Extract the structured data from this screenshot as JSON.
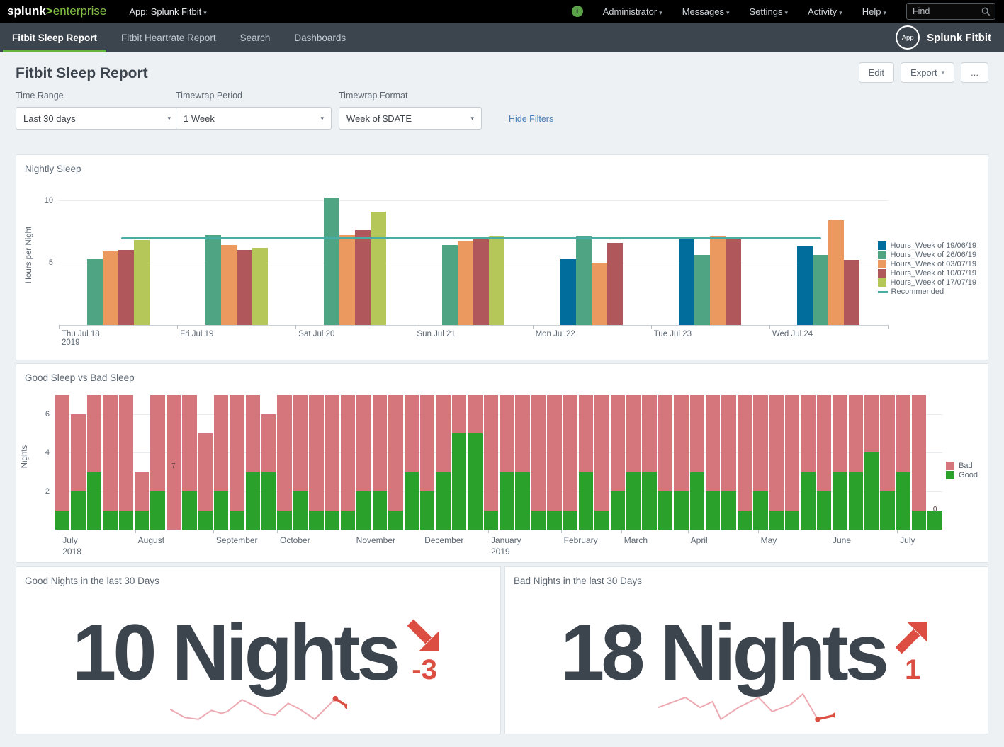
{
  "topbar": {
    "logo": {
      "splunk": "splunk",
      "gt": ">",
      "enterprise": "enterprise"
    },
    "app_menu": "App: Splunk Fitbit",
    "menus": [
      "Administrator",
      "Messages",
      "Settings",
      "Activity",
      "Help"
    ],
    "find_placeholder": "Find"
  },
  "navbar": {
    "tabs": [
      "Fitbit Sleep Report",
      "Fitbit Heartrate Report",
      "Search",
      "Dashboards"
    ],
    "active_tab": "Fitbit Sleep Report",
    "app_badge": "App",
    "app_name": "Splunk Fitbit"
  },
  "header": {
    "title": "Fitbit Sleep Report",
    "edit_label": "Edit",
    "export_label": "Export",
    "more_label": "..."
  },
  "filters": {
    "hide_label": "Hide Filters",
    "items": [
      {
        "label": "Time Range",
        "value": "Last 30 days"
      },
      {
        "label": "Timewrap Period",
        "value": "1 Week"
      },
      {
        "label": "Timewrap Format",
        "value": "Week of $DATE"
      }
    ]
  },
  "colors": {
    "accent_green": "#65b53f",
    "trend_red": "#dc4e41",
    "spark_pink": "#edaab2",
    "bad_pink": "#d4767c",
    "good_green": "#2aa12b"
  },
  "chart_data": [
    {
      "type": "bar",
      "title": "Nightly Sleep",
      "ylabel": "Hours per Night",
      "yticks": [
        5,
        10
      ],
      "ylim": [
        0,
        11
      ],
      "categories": [
        "Thu Jul 18",
        "Fri Jul 19",
        "Sat Jul 20",
        "Sun Jul 21",
        "Mon Jul 22",
        "Tue Jul 23",
        "Wed Jul 24"
      ],
      "first_category_sub": "2019",
      "series": [
        {
          "name": "Hours_Week of 19/06/19",
          "color": "#006d9c",
          "values": [
            null,
            null,
            null,
            null,
            5.3,
            6.9,
            6.3
          ]
        },
        {
          "name": "Hours_Week of 26/06/19",
          "color": "#4fa484",
          "values": [
            5.3,
            7.2,
            10.2,
            6.4,
            7.1,
            5.6,
            5.6
          ]
        },
        {
          "name": "Hours_Week of 03/07/19",
          "color": "#ec9960",
          "values": [
            5.9,
            6.4,
            7.2,
            6.7,
            5.0,
            7.1,
            8.4
          ]
        },
        {
          "name": "Hours_Week of 10/07/19",
          "color": "#af575a",
          "values": [
            6.0,
            6.0,
            7.6,
            6.9,
            6.6,
            6.9,
            5.2
          ]
        },
        {
          "name": "Hours_Week of 17/07/19",
          "color": "#b6c75a",
          "values": [
            6.8,
            6.2,
            9.1,
            7.1,
            null,
            null,
            null
          ]
        }
      ],
      "reference_line": {
        "label": "Recommended",
        "value": 7,
        "color": "#4aada3",
        "start_pct": 7.5,
        "end_pct": 92
      }
    },
    {
      "type": "stacked-bar",
      "title": "Good Sleep vs Bad Sleep",
      "ylabel": "Nights",
      "yticks": [
        2,
        4,
        6
      ],
      "ylim": [
        0,
        7
      ],
      "legend": [
        {
          "name": "Bad",
          "color": "#d4767c"
        },
        {
          "name": "Good",
          "color": "#2aa12b"
        }
      ],
      "months": [
        {
          "label": "July",
          "sub": "2018",
          "pct": 0.5
        },
        {
          "label": "August",
          "pct": 9.0
        },
        {
          "label": "September",
          "pct": 17.8
        },
        {
          "label": "October",
          "pct": 25.0
        },
        {
          "label": "November",
          "pct": 33.6
        },
        {
          "label": "December",
          "pct": 41.3
        },
        {
          "label": "January",
          "sub": "2019",
          "pct": 48.8
        },
        {
          "label": "February",
          "pct": 57.0
        },
        {
          "label": "March",
          "pct": 63.8
        },
        {
          "label": "April",
          "pct": 71.3
        },
        {
          "label": "May",
          "pct": 79.2
        },
        {
          "label": "June",
          "pct": 87.3
        },
        {
          "label": "July",
          "pct": 94.9
        }
      ],
      "bars": [
        [
          1,
          6
        ],
        [
          2,
          4
        ],
        [
          3,
          4
        ],
        [
          1,
          6
        ],
        [
          1,
          6
        ],
        [
          1,
          2
        ],
        [
          2,
          5
        ],
        [
          0,
          7
        ],
        [
          2,
          5
        ],
        [
          1,
          4
        ],
        [
          2,
          5
        ],
        [
          1,
          6
        ],
        [
          3,
          4
        ],
        [
          3,
          3
        ],
        [
          1,
          6
        ],
        [
          2,
          5
        ],
        [
          1,
          6
        ],
        [
          1,
          6
        ],
        [
          1,
          6
        ],
        [
          2,
          5
        ],
        [
          2,
          5
        ],
        [
          1,
          6
        ],
        [
          3,
          4
        ],
        [
          2,
          5
        ],
        [
          3,
          4
        ],
        [
          5,
          2
        ],
        [
          5,
          2
        ],
        [
          1,
          6
        ],
        [
          3,
          4
        ],
        [
          3,
          4
        ],
        [
          1,
          6
        ],
        [
          1,
          6
        ],
        [
          1,
          6
        ],
        [
          3,
          4
        ],
        [
          1,
          6
        ],
        [
          2,
          5
        ],
        [
          3,
          4
        ],
        [
          3,
          4
        ],
        [
          2,
          5
        ],
        [
          2,
          5
        ],
        [
          3,
          4
        ],
        [
          2,
          5
        ],
        [
          2,
          5
        ],
        [
          1,
          6
        ],
        [
          2,
          5
        ],
        [
          1,
          6
        ],
        [
          1,
          6
        ],
        [
          3,
          4
        ],
        [
          2,
          5
        ],
        [
          3,
          4
        ],
        [
          3,
          4
        ],
        [
          4,
          3
        ],
        [
          2,
          5
        ],
        [
          3,
          4
        ],
        [
          1,
          6
        ],
        [
          1,
          0
        ]
      ],
      "annotations": [
        {
          "index": 7,
          "text": "7",
          "bottom_pct": 44
        },
        {
          "index": 55,
          "text": "0",
          "bottom_pct": 12
        }
      ]
    },
    {
      "type": "single-value",
      "title": "Good Nights in the last 30 Days",
      "value": "10",
      "unit": "Nights",
      "delta": "-3",
      "trend": "down",
      "sparkline": [
        [
          0,
          38
        ],
        [
          25,
          52
        ],
        [
          48,
          55
        ],
        [
          70,
          40
        ],
        [
          87,
          45
        ],
        [
          97,
          42
        ],
        [
          122,
          22
        ],
        [
          145,
          33
        ],
        [
          160,
          45
        ],
        [
          178,
          48
        ],
        [
          200,
          28
        ],
        [
          220,
          38
        ],
        [
          245,
          55
        ],
        [
          268,
          32
        ],
        [
          280,
          20
        ],
        [
          300,
          33
        ]
      ],
      "red_from": 14
    },
    {
      "type": "single-value",
      "title": "Bad Nights in the last 30 Days",
      "value": "18",
      "unit": "Nights",
      "delta": "1",
      "trend": "up",
      "sparkline": [
        [
          0,
          35
        ],
        [
          46,
          18
        ],
        [
          71,
          35
        ],
        [
          92,
          25
        ],
        [
          106,
          55
        ],
        [
          136,
          35
        ],
        [
          170,
          18
        ],
        [
          193,
          42
        ],
        [
          224,
          30
        ],
        [
          245,
          12
        ],
        [
          270,
          55
        ],
        [
          300,
          48
        ]
      ],
      "red_from": 10
    }
  ]
}
